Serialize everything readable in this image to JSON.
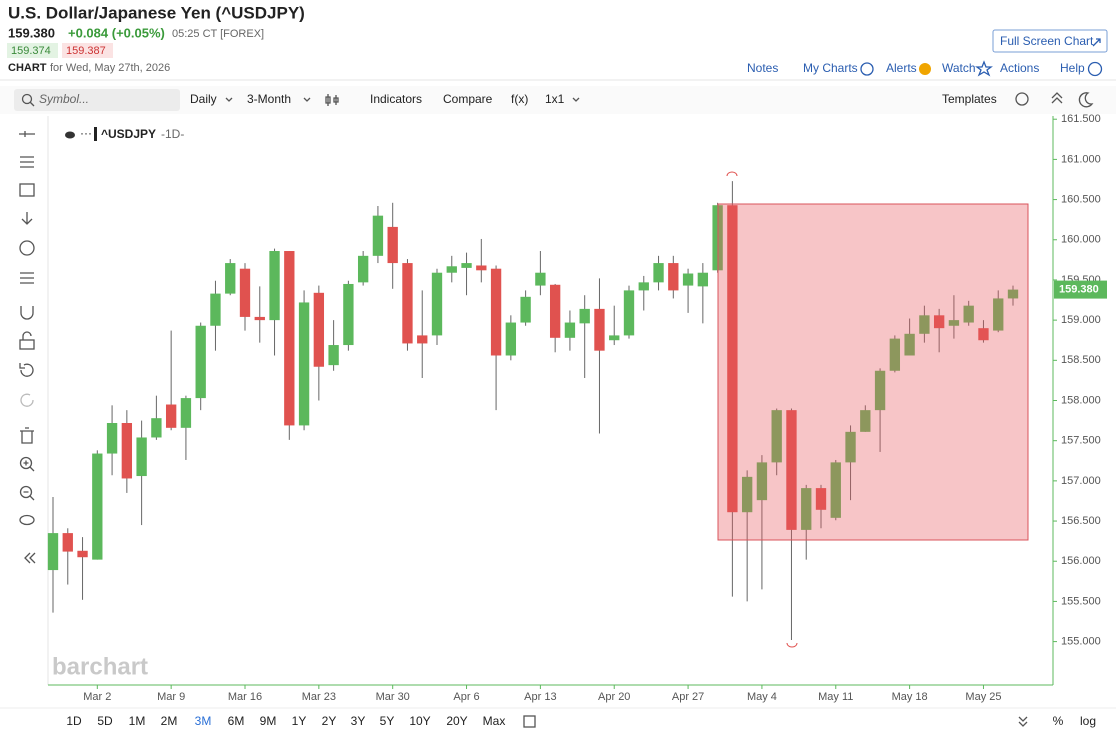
{
  "header": {
    "title": "U.S. Dollar/Japanese Yen (^USDJPY)",
    "last": "159.380",
    "change": "+0.084 (+0.05%)",
    "time": "05:25 CT [FOREX]",
    "bid": "159.374",
    "ask": "159.387",
    "chart_label": "CHART",
    "chart_date": "for Wed, May 27th, 2026",
    "full_screen": "Full Screen Chart"
  },
  "links": [
    "Notes",
    "My Charts",
    "Alerts",
    "Watch",
    "Actions",
    "Help"
  ],
  "toolbar": {
    "symbol_placeholder": "Symbol...",
    "items": [
      "Daily",
      "3-Month",
      "Indicators",
      "Compare",
      "f(x)",
      "1x1"
    ],
    "templates": "Templates"
  },
  "periods": [
    "1D",
    "5D",
    "1M",
    "2M",
    "3M",
    "6M",
    "9M",
    "1Y",
    "2Y",
    "3Y",
    "5Y",
    "10Y",
    "20Y",
    "Max"
  ],
  "active_period": "3M",
  "scale_options": [
    "%",
    "log"
  ],
  "watermark": "barchart",
  "chart_data": {
    "type": "candlestick",
    "symbol": "^USDJPY",
    "interval": "-1D-",
    "up_color": "#5cb85c",
    "down_color": "#e0524f",
    "categories": [
      null,
      null,
      null,
      "Mar 2",
      null,
      null,
      null,
      null,
      "Mar 9",
      null,
      null,
      null,
      null,
      "Mar 16",
      null,
      null,
      null,
      null,
      "Mar 23",
      null,
      null,
      null,
      null,
      "Mar 30",
      null,
      null,
      null,
      null,
      "Apr 6",
      null,
      null,
      null,
      null,
      "Apr 13",
      null,
      null,
      null,
      null,
      "Apr 20",
      null,
      null,
      null,
      null,
      "Apr 27",
      null,
      null,
      null,
      null,
      "May 4",
      null,
      null,
      null,
      null,
      "May 11",
      null,
      null,
      null,
      null,
      "May 18",
      null,
      null,
      null,
      null,
      "May 25",
      null,
      null
    ],
    "open": [
      155.89,
      156.35,
      156.13,
      156.02,
      157.34,
      157.72,
      157.06,
      157.54,
      157.95,
      157.66,
      158.03,
      158.93,
      159.33,
      159.64,
      159.04,
      159.0,
      159.86,
      157.69,
      159.34,
      158.44,
      158.69,
      159.47,
      159.8,
      160.16,
      159.71,
      158.81,
      158.81,
      159.59,
      159.65,
      159.68,
      159.64,
      158.56,
      158.97,
      159.43,
      159.44,
      158.78,
      158.96,
      159.14,
      158.75,
      158.81,
      159.37,
      159.47,
      159.71,
      159.43,
      159.42,
      159.62,
      160.43,
      156.61,
      156.76,
      157.23,
      157.88,
      156.39,
      156.91,
      156.54,
      157.23,
      157.61,
      157.88,
      158.37,
      158.56,
      158.83,
      159.06,
      158.93,
      158.97,
      158.9,
      158.87,
      159.27
    ],
    "high": [
      156.8,
      156.41,
      156.3,
      157.38,
      157.94,
      157.88,
      157.75,
      158.06,
      158.87,
      158.06,
      158.97,
      159.49,
      159.76,
      159.71,
      159.42,
      159.89,
      159.86,
      159.37,
      159.43,
      159.0,
      159.49,
      159.86,
      160.42,
      160.46,
      159.76,
      159.37,
      159.64,
      159.8,
      159.84,
      160.01,
      159.68,
      159.06,
      159.37,
      159.86,
      159.45,
      159.12,
      159.31,
      159.52,
      159.18,
      159.43,
      159.55,
      159.8,
      159.8,
      159.64,
      159.71,
      160.46,
      160.73,
      157.13,
      157.32,
      157.9,
      157.9,
      156.95,
      156.95,
      157.26,
      157.69,
      157.94,
      158.4,
      158.81,
      159.02,
      159.18,
      159.14,
      159.31,
      159.24,
      159.0,
      159.37,
      159.43
    ],
    "low": [
      155.36,
      155.71,
      155.52,
      156.02,
      157.07,
      156.85,
      156.45,
      157.51,
      157.63,
      157.26,
      157.88,
      158.62,
      159.31,
      158.87,
      158.72,
      158.56,
      157.51,
      157.63,
      158.0,
      158.37,
      158.62,
      159.43,
      159.71,
      159.39,
      158.62,
      158.28,
      158.69,
      159.47,
      159.31,
      159.47,
      157.88,
      158.5,
      158.93,
      159.31,
      158.6,
      158.62,
      158.28,
      157.59,
      158.69,
      158.77,
      159.12,
      159.37,
      159.27,
      159.09,
      158.96,
      159.59,
      155.56,
      155.5,
      155.65,
      157.07,
      155.02,
      156.02,
      156.41,
      156.51,
      156.76,
      157.61,
      157.36,
      158.35,
      158.56,
      158.72,
      158.6,
      158.77,
      158.93,
      158.72,
      158.85,
      159.18
    ],
    "close": [
      156.35,
      156.12,
      156.05,
      157.34,
      157.72,
      157.03,
      157.54,
      157.78,
      157.66,
      158.03,
      158.93,
      159.33,
      159.71,
      159.04,
      159.0,
      159.86,
      157.69,
      159.22,
      158.42,
      158.69,
      159.45,
      159.8,
      160.3,
      159.71,
      158.71,
      158.71,
      159.59,
      159.67,
      159.71,
      159.62,
      158.56,
      158.97,
      159.29,
      159.59,
      158.78,
      158.97,
      159.14,
      158.62,
      158.81,
      159.37,
      159.47,
      159.71,
      159.37,
      159.58,
      159.59,
      160.43,
      156.61,
      157.05,
      157.23,
      157.88,
      156.39,
      156.91,
      156.64,
      157.23,
      157.61,
      157.88,
      158.37,
      158.77,
      158.83,
      159.06,
      158.9,
      159.0,
      159.18,
      158.75,
      159.27,
      159.38
    ],
    "price_marker": {
      "value": 159.38,
      "label": "159.380"
    },
    "ylim": [
      154.46,
      161.54
    ],
    "yticks": [
      {
        "value": 155,
        "label": "155.000"
      },
      {
        "value": 155.5,
        "label": "155.500"
      },
      {
        "value": 156,
        "label": "156.000"
      },
      {
        "value": 156.5,
        "label": "156.500"
      },
      {
        "value": 157,
        "label": "157.000"
      },
      {
        "value": 157.5,
        "label": "157.500"
      },
      {
        "value": 158,
        "label": "158.000"
      },
      {
        "value": 158.5,
        "label": "158.500"
      },
      {
        "value": 159,
        "label": "159.000"
      },
      {
        "value": 159.5,
        "label": "159.500"
      },
      {
        "value": 160,
        "label": "160.000"
      },
      {
        "value": 160.5,
        "label": "160.500"
      },
      {
        "value": 161,
        "label": "161.000"
      },
      {
        "value": 161.5,
        "label": "161.500"
      }
    ]
  }
}
